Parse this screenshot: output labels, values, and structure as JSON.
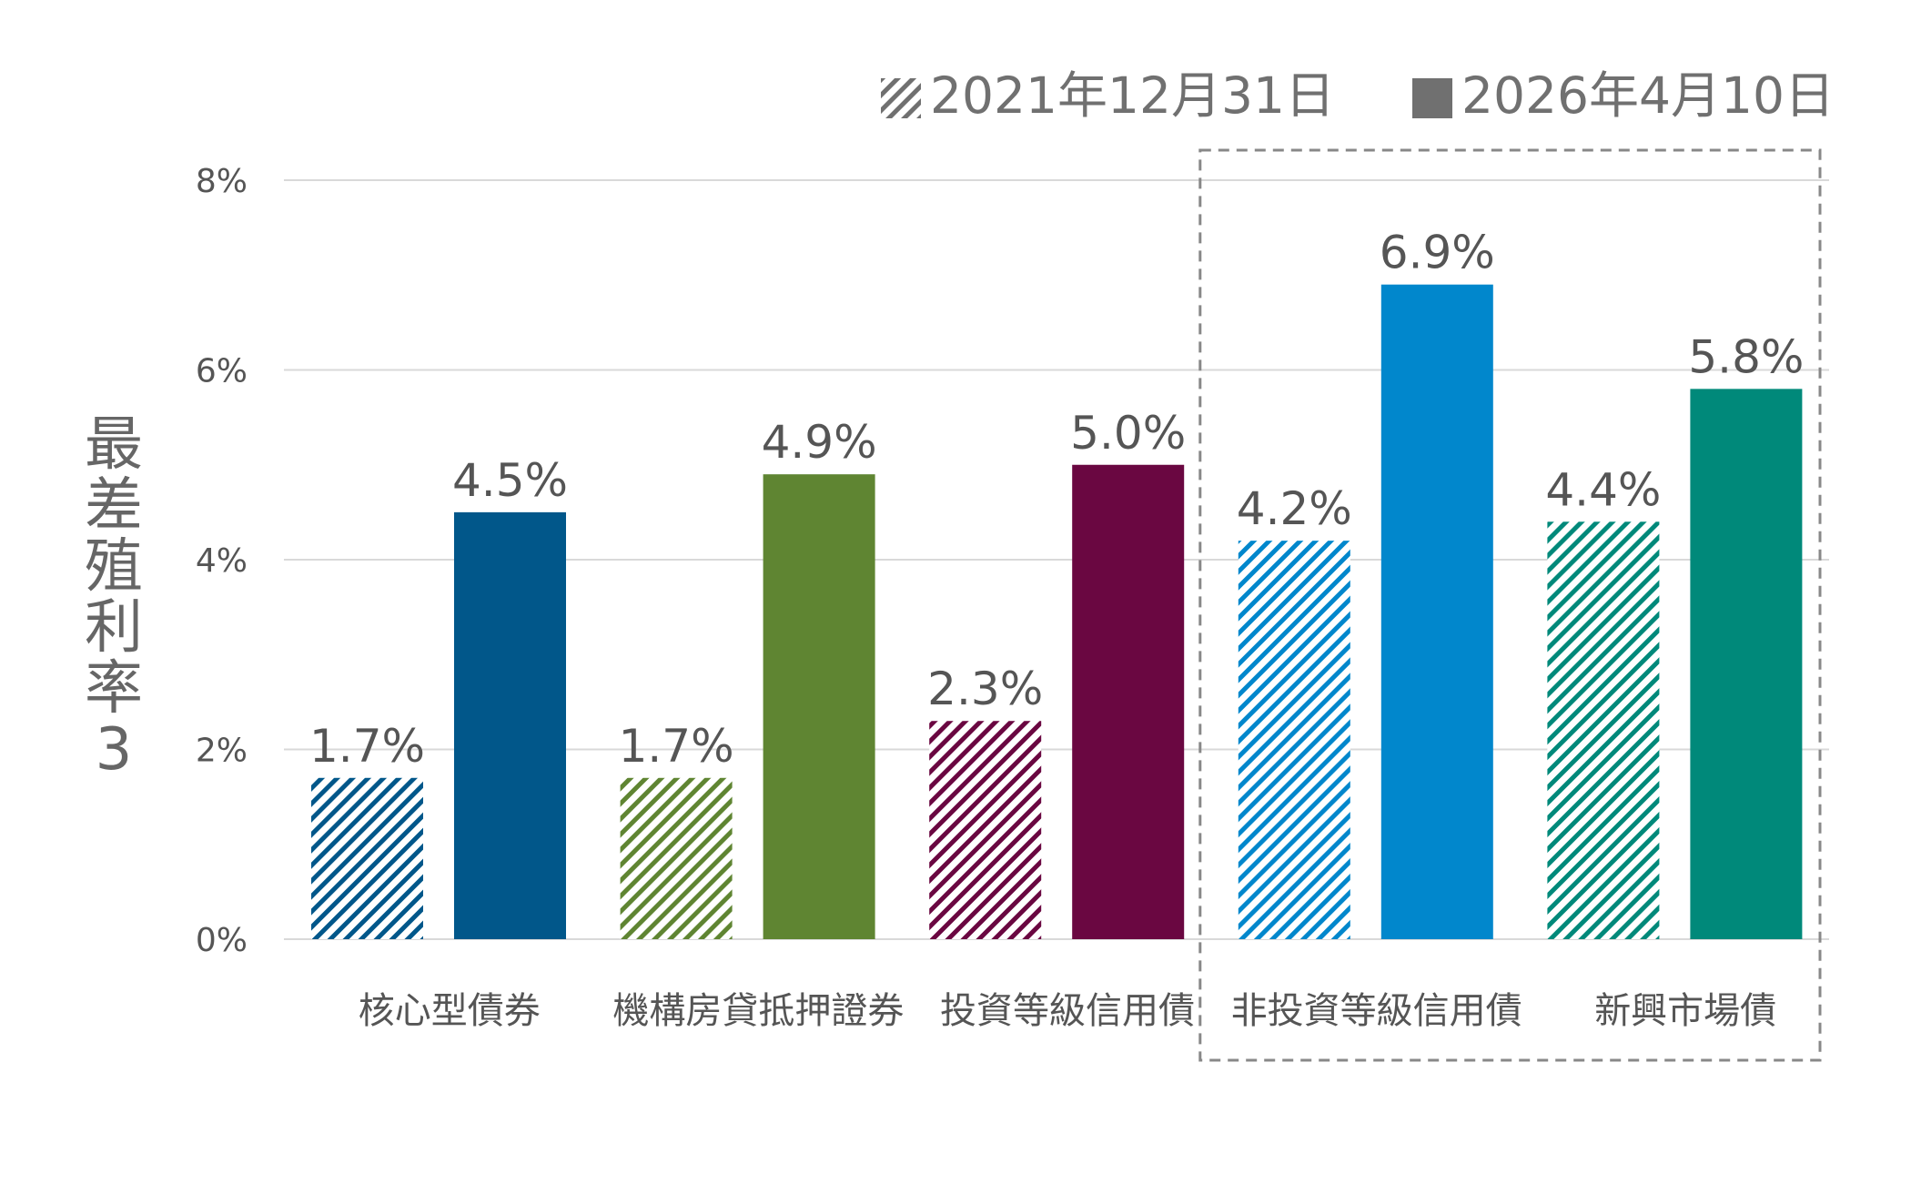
{
  "chart_data": {
    "type": "bar",
    "ylabel": "最差殖利率3",
    "ylim": [
      0,
      8
    ],
    "yticks": [
      0,
      2,
      4,
      6,
      8
    ],
    "ytick_labels": [
      "0%",
      "2%",
      "4%",
      "6%",
      "8%"
    ],
    "grid": true,
    "legend_position": "top-right",
    "categories": [
      "核心型債券",
      "機構房貸抵押證券",
      "投資等級信用債",
      "非投資等級信用債",
      "新興市場債"
    ],
    "category_colors": [
      "#01578A",
      "#5F8532",
      "#6A0741",
      "#0187CC",
      "#00897A"
    ],
    "series": [
      {
        "name": "2021年12月31日",
        "style": "hatched",
        "values": [
          1.7,
          1.7,
          2.3,
          4.2,
          4.4
        ],
        "labels": [
          "1.7%",
          "1.7%",
          "2.3%",
          "4.2%",
          "4.4%"
        ]
      },
      {
        "name": "2026年4月10日",
        "style": "solid",
        "values": [
          4.5,
          4.9,
          5.0,
          6.9,
          5.8
        ],
        "labels": [
          "4.5%",
          "4.9%",
          "5.0%",
          "6.9%",
          "5.8%"
        ]
      }
    ],
    "highlight": {
      "from_category": 3,
      "to_category": 4,
      "style": "dashed-box"
    },
    "legend_colors": {
      "hatched": "#707070",
      "solid": "#707070"
    }
  }
}
